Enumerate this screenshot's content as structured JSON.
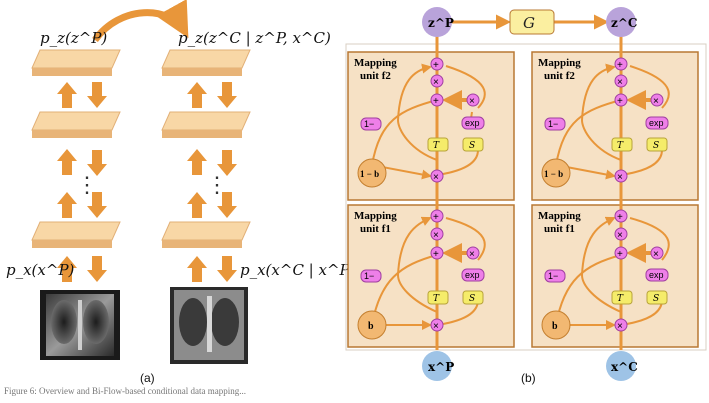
{
  "panel_a": {
    "label": "(a)",
    "top_left_math": "p_z(z^P)",
    "top_right_math": "p_z(z^C | z^P, x^C)",
    "bottom_left_math": "p_x(x^P)",
    "bottom_right_math": "p_x(x^C | x^P)",
    "ellipsis": "⋮"
  },
  "panel_b": {
    "label": "(b)",
    "g_symbol": "G",
    "zP": "z^P",
    "zC": "z^C",
    "xP": "x^P",
    "xC": "x^C",
    "unit_top_title": "Mapping",
    "unit_top_sub": "unit f2",
    "unit_bottom_title": "Mapping",
    "unit_bottom_sub": "unit f1",
    "one_minus_b": "1 − b",
    "b": "b",
    "one_minus": "1−",
    "exp": "exp",
    "tau": "T",
    "s": "S",
    "plus": "+",
    "times": "×"
  },
  "caption": "Figure 6: Overview and Bi-Flow-based conditional data mapping...",
  "colors": {
    "arrow_orange": "#E8963A",
    "box_fill": "#F6E1C5",
    "plate_fill": "#F8D7A6",
    "purple_node": "#B9A3DA",
    "blue_node": "#9EC3E6",
    "pink_node": "#EE7FE8",
    "yellow_node": "#F5EC6A",
    "g_fill": "#FBEFA0"
  }
}
